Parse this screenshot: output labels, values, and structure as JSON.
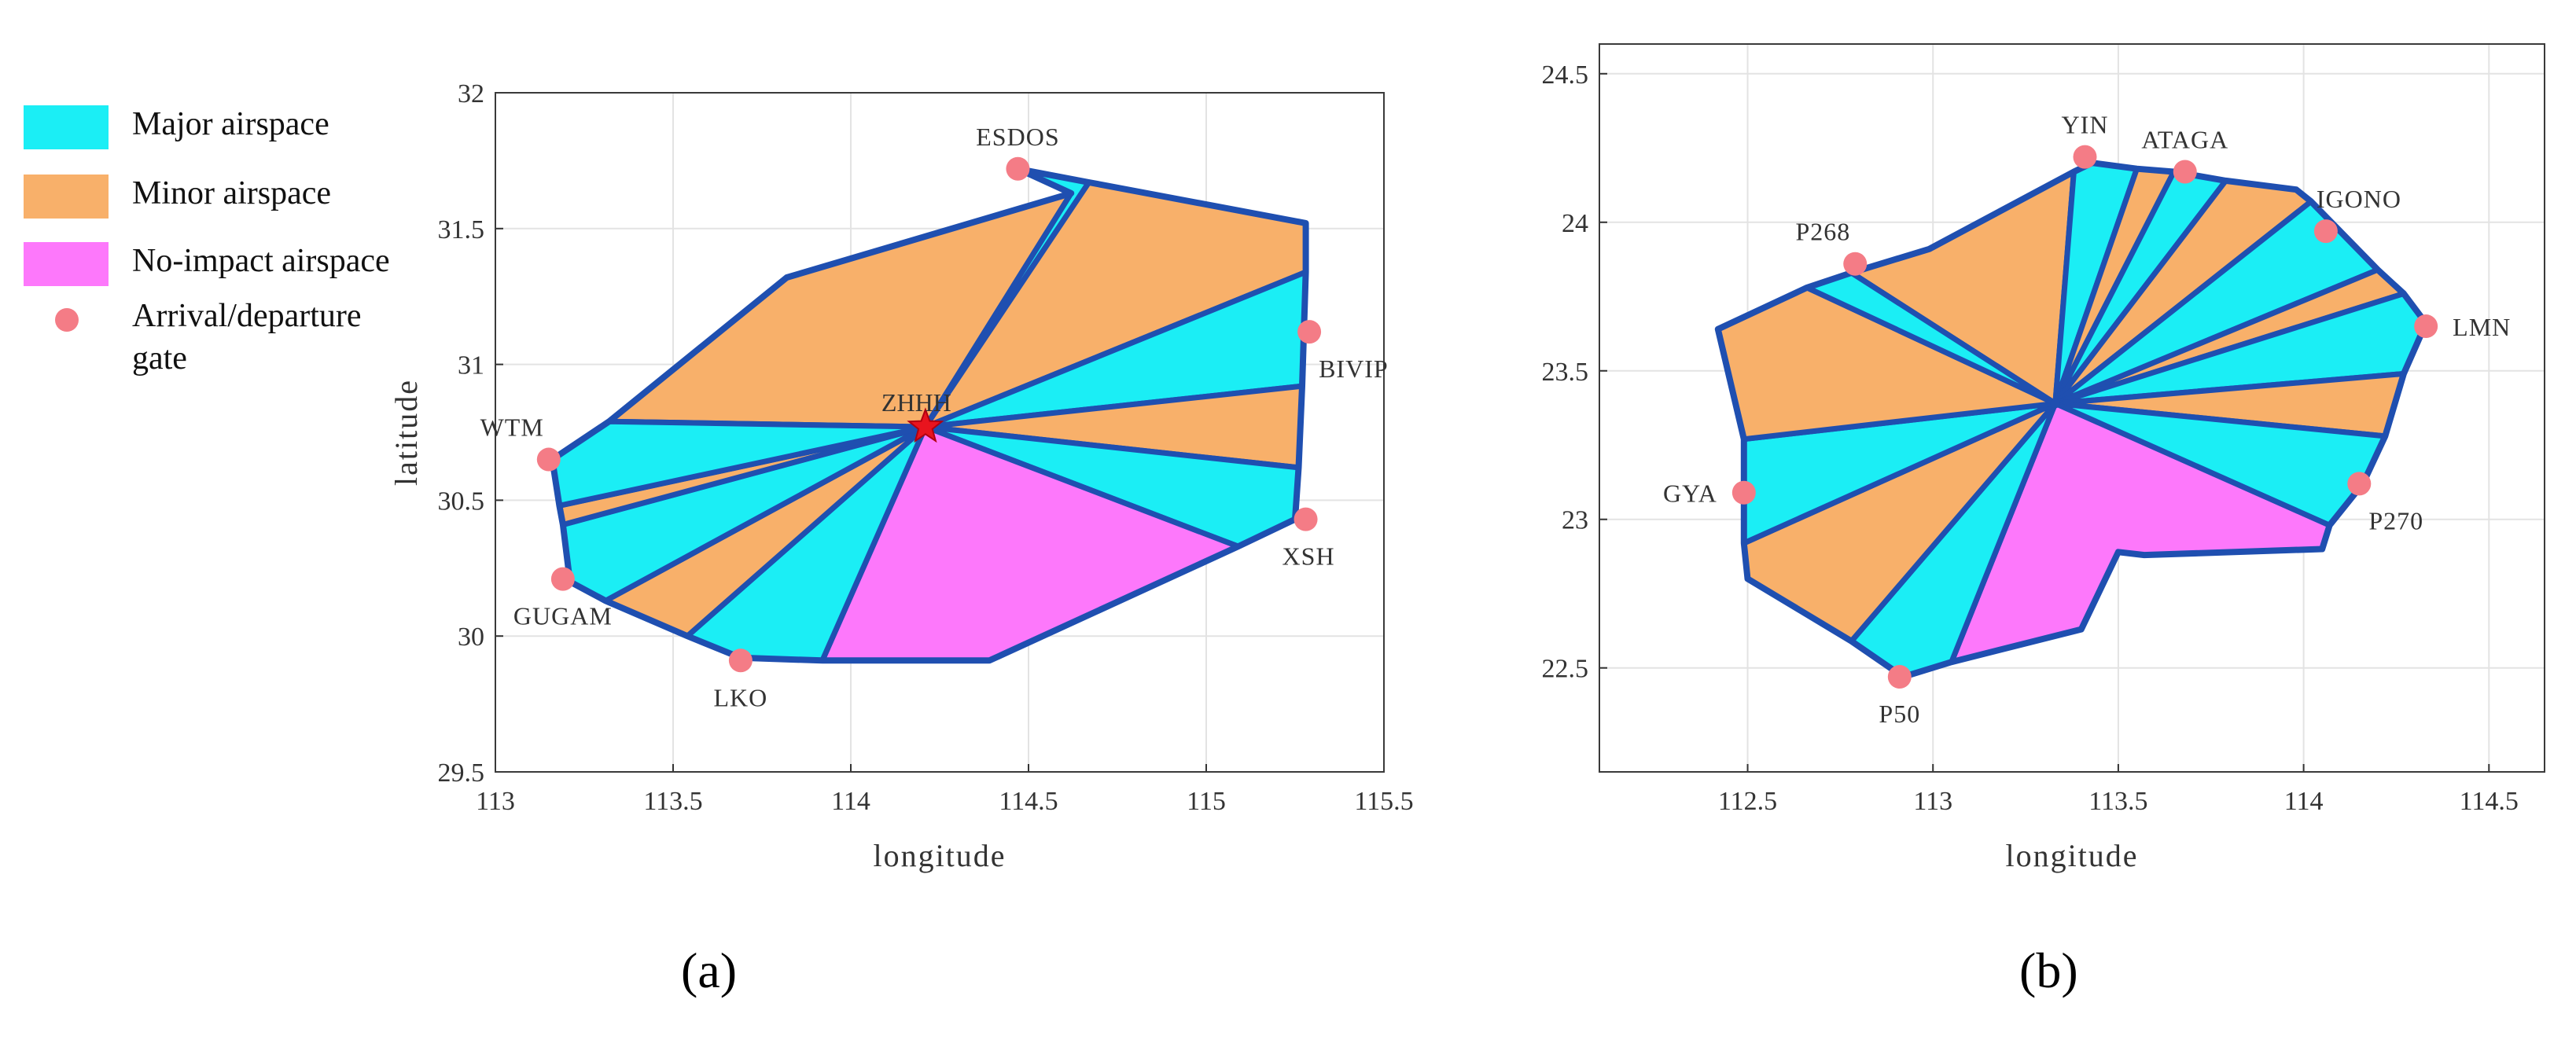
{
  "legend": {
    "major": "Major airspace",
    "minor": "Minor airspace",
    "none": "No-impact airspace",
    "gate_line1": "Arrival/departure",
    "gate_line2": "gate"
  },
  "colors": {
    "major": "#1beef5",
    "minor": "#f8b06a",
    "none": "#fd78fb",
    "edge": "#1f4fb0",
    "gate": "#f47c86",
    "center_star": "#e8141e"
  },
  "panel_labels": {
    "a": "(a)",
    "b": "(b)"
  },
  "chart_data": [
    {
      "type": "map",
      "panel": "a",
      "xlabel": "longitude",
      "ylabel": "latitude",
      "xlim": [
        113,
        115.5
      ],
      "ylim": [
        29.5,
        32
      ],
      "xticks": [
        "113",
        "113.5",
        "114",
        "114.5",
        "115",
        "115.5"
      ],
      "yticks": [
        "29.5",
        "30",
        "30.5",
        "31",
        "31.5",
        "32"
      ],
      "grid": true,
      "center": {
        "name": "ZHHH",
        "lon": 114.21,
        "lat": 30.77
      },
      "gates": [
        {
          "name": "ESDOS",
          "lon": 114.47,
          "lat": 31.72,
          "label_side": "above"
        },
        {
          "name": "BIVIP",
          "lon": 115.29,
          "lat": 31.12,
          "label_side": "below-right"
        },
        {
          "name": "XSH",
          "lon": 115.28,
          "lat": 30.43,
          "label_side": "below-left"
        },
        {
          "name": "LKO",
          "lon": 113.69,
          "lat": 29.91,
          "label_side": "below"
        },
        {
          "name": "GUGAM",
          "lon": 113.19,
          "lat": 30.21,
          "label_side": "below"
        },
        {
          "name": "WTM",
          "lon": 113.15,
          "lat": 30.65,
          "label_side": "above-left"
        }
      ],
      "sectors": [
        {
          "class": "minor",
          "vertices": [
            [
              113.32,
              30.79
            ],
            [
              113.82,
              31.32
            ],
            [
              114.62,
              31.63
            ]
          ]
        },
        {
          "class": "major",
          "vertices": [
            [
              114.62,
              31.63
            ],
            [
              114.47,
              31.72
            ],
            [
              114.67,
              31.67
            ]
          ]
        },
        {
          "class": "minor",
          "vertices": [
            [
              114.67,
              31.67
            ],
            [
              115.28,
              31.52
            ],
            [
              115.28,
              31.34
            ]
          ]
        },
        {
          "class": "major",
          "vertices": [
            [
              115.28,
              31.34
            ],
            [
              115.27,
              30.92
            ]
          ]
        },
        {
          "class": "minor",
          "vertices": [
            [
              115.27,
              30.92
            ],
            [
              115.26,
              30.62
            ]
          ]
        },
        {
          "class": "major",
          "vertices": [
            [
              115.26,
              30.62
            ],
            [
              115.25,
              30.43
            ],
            [
              115.09,
              30.33
            ]
          ]
        },
        {
          "class": "none",
          "vertices": [
            [
              115.09,
              30.33
            ],
            [
              114.39,
              29.91
            ],
            [
              113.92,
              29.91
            ]
          ]
        },
        {
          "class": "major",
          "vertices": [
            [
              113.92,
              29.91
            ],
            [
              113.69,
              29.92
            ],
            [
              113.54,
              30.0
            ]
          ]
        },
        {
          "class": "minor",
          "vertices": [
            [
              113.54,
              30.0
            ],
            [
              113.31,
              30.13
            ]
          ]
        },
        {
          "class": "major",
          "vertices": [
            [
              113.31,
              30.13
            ],
            [
              113.21,
              30.2
            ],
            [
              113.19,
              30.41
            ]
          ]
        },
        {
          "class": "minor",
          "vertices": [
            [
              113.19,
              30.41
            ],
            [
              113.18,
              30.48
            ]
          ]
        },
        {
          "class": "major",
          "vertices": [
            [
              113.18,
              30.48
            ],
            [
              113.16,
              30.65
            ],
            [
              113.32,
              30.79
            ]
          ]
        }
      ]
    },
    {
      "type": "map",
      "panel": "b",
      "xlabel": "longitude",
      "ylabel": "",
      "xlim": [
        112.1,
        114.65
      ],
      "ylim": [
        22.15,
        24.6
      ],
      "xticks": [
        "112.5",
        "113",
        "113.5",
        "114",
        "114.5"
      ],
      "yticks": [
        "22.5",
        "23",
        "23.5",
        "24",
        "24.5"
      ],
      "grid": true,
      "center": {
        "name": "",
        "lon": 113.33,
        "lat": 23.39
      },
      "gates": [
        {
          "name": "YIN",
          "lon": 113.41,
          "lat": 24.22,
          "label_side": "above"
        },
        {
          "name": "ATAGA",
          "lon": 113.68,
          "lat": 24.17,
          "label_side": "above"
        },
        {
          "name": "IGONO",
          "lon": 114.06,
          "lat": 23.97,
          "label_side": "above-right"
        },
        {
          "name": "LMN",
          "lon": 114.33,
          "lat": 23.65,
          "label_side": "right"
        },
        {
          "name": "P270",
          "lon": 114.15,
          "lat": 23.12,
          "label_side": "below-right"
        },
        {
          "name": "P50",
          "lon": 112.91,
          "lat": 22.47,
          "label_side": "below"
        },
        {
          "name": "GYA",
          "lon": 112.49,
          "lat": 23.09,
          "label_side": "left"
        },
        {
          "name": "P268",
          "lon": 112.79,
          "lat": 23.86,
          "label_side": "above-left"
        }
      ],
      "sectors": [
        {
          "class": "minor",
          "vertices": [
            [
              112.78,
              23.83
            ],
            [
              112.99,
              23.91
            ],
            [
              113.38,
              24.17
            ]
          ]
        },
        {
          "class": "major",
          "vertices": [
            [
              113.38,
              24.17
            ],
            [
              113.43,
              24.2
            ],
            [
              113.55,
              24.18
            ]
          ]
        },
        {
          "class": "minor",
          "vertices": [
            [
              113.55,
              24.18
            ],
            [
              113.65,
              24.17
            ]
          ]
        },
        {
          "class": "major",
          "vertices": [
            [
              113.65,
              24.17
            ],
            [
              113.79,
              24.14
            ]
          ]
        },
        {
          "class": "minor",
          "vertices": [
            [
              113.79,
              24.14
            ],
            [
              113.98,
              24.11
            ],
            [
              114.02,
              24.07
            ]
          ]
        },
        {
          "class": "major",
          "vertices": [
            [
              114.02,
              24.07
            ],
            [
              114.2,
              23.84
            ]
          ]
        },
        {
          "class": "minor",
          "vertices": [
            [
              114.2,
              23.84
            ],
            [
              114.27,
              23.76
            ]
          ]
        },
        {
          "class": "major",
          "vertices": [
            [
              114.27,
              23.76
            ],
            [
              114.33,
              23.66
            ],
            [
              114.27,
              23.49
            ]
          ]
        },
        {
          "class": "minor",
          "vertices": [
            [
              114.27,
              23.49
            ],
            [
              114.22,
              23.28
            ]
          ]
        },
        {
          "class": "major",
          "vertices": [
            [
              114.22,
              23.28
            ],
            [
              114.16,
              23.12
            ],
            [
              114.07,
              22.98
            ]
          ]
        },
        {
          "class": "none",
          "vertices": [
            [
              114.07,
              22.98
            ],
            [
              114.05,
              22.9
            ],
            [
              113.57,
              22.88
            ],
            [
              113.5,
              22.89
            ],
            [
              113.4,
              22.63
            ],
            [
              113.05,
              22.52
            ]
          ]
        },
        {
          "class": "major",
          "vertices": [
            [
              113.05,
              22.52
            ],
            [
              112.92,
              22.47
            ],
            [
              112.78,
              22.59
            ]
          ]
        },
        {
          "class": "minor",
          "vertices": [
            [
              112.78,
              22.59
            ],
            [
              112.5,
              22.8
            ],
            [
              112.49,
              22.92
            ]
          ]
        },
        {
          "class": "major",
          "vertices": [
            [
              112.49,
              22.92
            ],
            [
              112.49,
              23.1
            ],
            [
              112.49,
              23.27
            ]
          ]
        },
        {
          "class": "minor",
          "vertices": [
            [
              112.49,
              23.27
            ],
            [
              112.42,
              23.64
            ],
            [
              112.66,
              23.78
            ]
          ]
        },
        {
          "class": "major",
          "vertices": [
            [
              112.66,
              23.78
            ],
            [
              112.78,
              23.83
            ]
          ]
        }
      ]
    }
  ]
}
